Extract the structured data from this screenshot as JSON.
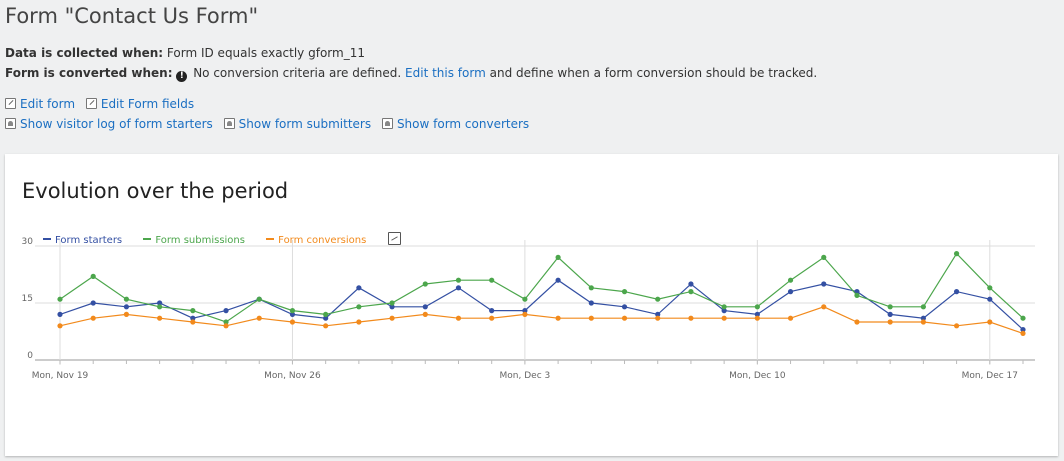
{
  "title": "Form \"Contact Us Form\"",
  "collected": {
    "label": "Data is collected when:",
    "value": "Form ID equals exactly gform_11"
  },
  "converted": {
    "label": "Form is converted when:",
    "message": "No conversion criteria are defined.",
    "link": "Edit this form",
    "suffix": "and define when a form conversion should be tracked."
  },
  "links": {
    "edit_form": "Edit form",
    "edit_fields": "Edit Form fields",
    "visitor_log": "Show visitor log of form starters",
    "submitters": "Show form submitters",
    "converters": "Show form converters"
  },
  "icons": {
    "edit": "edit-icon",
    "user": "visitor-log-icon",
    "warning": "exclamation-icon",
    "export": "chart-export-icon"
  },
  "card_title": "Evolution over the period",
  "chart_data": {
    "type": "line",
    "x": [
      "2018-11-19",
      "2018-11-20",
      "2018-11-21",
      "2018-11-22",
      "2018-11-23",
      "2018-11-24",
      "2018-11-25",
      "2018-11-26",
      "2018-11-27",
      "2018-11-28",
      "2018-11-29",
      "2018-11-30",
      "2018-12-01",
      "2018-12-02",
      "2018-12-03",
      "2018-12-04",
      "2018-12-05",
      "2018-12-06",
      "2018-12-07",
      "2018-12-08",
      "2018-12-09",
      "2018-12-10",
      "2018-12-11",
      "2018-12-12",
      "2018-12-13",
      "2018-12-14",
      "2018-12-15",
      "2018-12-16",
      "2018-12-17",
      "2018-12-18"
    ],
    "x_tick_labels": [
      "Mon, Nov 19",
      "Mon, Nov 26",
      "Mon, Dec 3",
      "Mon, Dec 10",
      "Mon, Dec 17"
    ],
    "x_tick_positions": [
      0,
      7,
      14,
      21,
      28
    ],
    "y_ticks": [
      0,
      15,
      30
    ],
    "ylim": [
      0,
      30
    ],
    "grid": true,
    "legend_position": "top-left",
    "series": [
      {
        "name": "Form starters",
        "color": "#3450a3",
        "values": [
          12,
          15,
          14,
          15,
          11,
          13,
          16,
          12,
          11,
          19,
          14,
          14,
          19,
          13,
          13,
          21,
          15,
          14,
          12,
          20,
          13,
          12,
          18,
          20,
          18,
          12,
          11,
          18,
          16,
          8
        ]
      },
      {
        "name": "Form submissions",
        "color": "#4ca64c",
        "values": [
          16,
          22,
          16,
          14,
          13,
          10,
          16,
          13,
          12,
          14,
          15,
          20,
          21,
          21,
          16,
          27,
          19,
          18,
          16,
          18,
          14,
          14,
          21,
          27,
          17,
          14,
          14,
          28,
          19,
          11
        ]
      },
      {
        "name": "Form conversions",
        "color": "#f28a1c",
        "values": [
          9,
          11,
          12,
          11,
          10,
          9,
          11,
          10,
          9,
          10,
          11,
          12,
          11,
          11,
          12,
          11,
          11,
          11,
          11,
          11,
          11,
          11,
          11,
          14,
          10,
          10,
          10,
          9,
          10,
          7
        ]
      }
    ]
  }
}
